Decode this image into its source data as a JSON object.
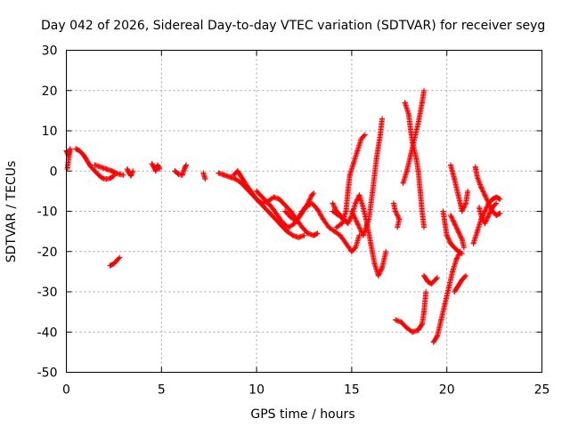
{
  "chart_data": {
    "type": "scatter",
    "title": "Day 042 of 2026, Sidereal Day-to-day VTEC variation (SDTVAR) for receiver seyg",
    "xlabel": "GPS time / hours",
    "ylabel": "SDTVAR / TECUs",
    "xlim": [
      0,
      25
    ],
    "ylim": [
      -50,
      30
    ],
    "xticks": [
      "0",
      "5",
      "10",
      "15",
      "20",
      "25"
    ],
    "yticks": [
      "30",
      "20",
      "10",
      "0",
      "-10",
      "-20",
      "-30",
      "-40",
      "-50"
    ],
    "grid": true,
    "marker": "+",
    "color": "#ff0000",
    "series": [
      {
        "name": "s1",
        "points": [
          [
            0.0,
            5.0
          ],
          [
            0.1,
            4.0
          ],
          [
            0.2,
            5.5
          ],
          [
            0.05,
            0.5
          ]
        ]
      },
      {
        "name": "s2",
        "points": [
          [
            0.5,
            5.5
          ],
          [
            0.7,
            5.0
          ],
          [
            0.9,
            4.0
          ],
          [
            1.1,
            2.5
          ],
          [
            1.3,
            1.0
          ],
          [
            1.5,
            0.0
          ],
          [
            1.7,
            -1.0
          ],
          [
            1.9,
            -1.8
          ],
          [
            2.1,
            -2.0
          ],
          [
            2.3,
            -1.8
          ],
          [
            2.5,
            -1.2
          ]
        ]
      },
      {
        "name": "s3",
        "points": [
          [
            1.5,
            1.5
          ],
          [
            1.8,
            1.0
          ],
          [
            2.1,
            0.5
          ],
          [
            2.4,
            0.0
          ],
          [
            2.6,
            -0.5
          ],
          [
            2.8,
            -0.8
          ],
          [
            3.0,
            -1.0
          ]
        ]
      },
      {
        "name": "s4",
        "points": [
          [
            2.3,
            -23.5
          ],
          [
            2.5,
            -23.0
          ],
          [
            2.7,
            -22.0
          ],
          [
            2.8,
            -21.5
          ]
        ]
      },
      {
        "name": "s5",
        "points": [
          [
            3.2,
            0.5
          ],
          [
            3.3,
            -0.5
          ],
          [
            3.4,
            -1.2
          ],
          [
            3.5,
            0.0
          ]
        ]
      },
      {
        "name": "s6",
        "points": [
          [
            4.5,
            1.8
          ],
          [
            4.6,
            1.0
          ],
          [
            4.7,
            0.0
          ],
          [
            4.8,
            1.5
          ],
          [
            4.9,
            0.5
          ]
        ]
      },
      {
        "name": "s7",
        "points": [
          [
            5.7,
            0.0
          ],
          [
            5.9,
            -0.8
          ],
          [
            6.1,
            -1.0
          ],
          [
            6.2,
            0.5
          ],
          [
            6.3,
            1.5
          ]
        ]
      },
      {
        "name": "s8",
        "points": [
          [
            7.2,
            -0.5
          ],
          [
            7.3,
            -2.0
          ]
        ]
      },
      {
        "name": "s9",
        "points": [
          [
            8.0,
            -0.5
          ],
          [
            8.3,
            -1.0
          ],
          [
            8.6,
            -1.5
          ],
          [
            8.9,
            -2.0
          ],
          [
            9.2,
            -3.0
          ],
          [
            9.5,
            -4.5
          ],
          [
            9.8,
            -6.0
          ],
          [
            10.1,
            -7.5
          ],
          [
            10.4,
            -9.0
          ],
          [
            10.7,
            -10.5
          ],
          [
            11.0,
            -12.0
          ],
          [
            11.3,
            -13.5
          ],
          [
            11.6,
            -15.0
          ],
          [
            11.9,
            -16.0
          ],
          [
            12.2,
            -16.5
          ],
          [
            12.5,
            -16.0
          ]
        ]
      },
      {
        "name": "s10",
        "points": [
          [
            8.8,
            -1.0
          ],
          [
            9.0,
            0.0
          ],
          [
            9.2,
            -1.5
          ],
          [
            9.4,
            -3.0
          ],
          [
            9.7,
            -5.0
          ],
          [
            10.0,
            -7.0
          ],
          [
            10.3,
            -8.0
          ],
          [
            10.6,
            -7.5
          ],
          [
            10.9,
            -6.5
          ],
          [
            11.2,
            -7.0
          ],
          [
            11.5,
            -8.5
          ],
          [
            11.8,
            -10.0
          ],
          [
            12.1,
            -12.0
          ],
          [
            12.4,
            -14.0
          ],
          [
            12.7,
            -15.5
          ],
          [
            13.0,
            -16.0
          ],
          [
            13.2,
            -15.5
          ]
        ]
      },
      {
        "name": "s11",
        "points": [
          [
            10.0,
            -5.0
          ],
          [
            10.4,
            -7.0
          ],
          [
            10.8,
            -9.0
          ],
          [
            11.1,
            -11.0
          ],
          [
            11.4,
            -13.0
          ],
          [
            11.7,
            -14.0
          ],
          [
            12.0,
            -13.0
          ],
          [
            12.3,
            -11.0
          ],
          [
            12.6,
            -9.0
          ],
          [
            12.9,
            -8.0
          ],
          [
            13.2,
            -9.5
          ],
          [
            13.5,
            -12.0
          ],
          [
            13.8,
            -14.0
          ],
          [
            14.1,
            -15.0
          ],
          [
            14.4,
            -16.0
          ],
          [
            14.7,
            -18.0
          ],
          [
            15.0,
            -20.0
          ],
          [
            15.2,
            -19.0
          ],
          [
            15.4,
            -16.0
          ]
        ]
      },
      {
        "name": "s12",
        "points": [
          [
            11.5,
            -10.0
          ],
          [
            11.8,
            -11.5
          ],
          [
            12.1,
            -12.5
          ],
          [
            12.4,
            -10.0
          ],
          [
            12.7,
            -8.0
          ],
          [
            12.9,
            -6.0
          ],
          [
            13.0,
            -5.5
          ]
        ]
      },
      {
        "name": "s13",
        "points": [
          [
            14.0,
            -8.0
          ],
          [
            14.2,
            -10.0
          ],
          [
            14.4,
            -11.0
          ],
          [
            14.6,
            -12.0
          ],
          [
            14.8,
            -13.0
          ],
          [
            15.0,
            -11.0
          ],
          [
            15.2,
            -8.0
          ],
          [
            15.4,
            -6.0
          ],
          [
            15.6,
            -9.0
          ],
          [
            15.8,
            -13.0
          ],
          [
            16.0,
            -18.0
          ],
          [
            16.2,
            -23.0
          ],
          [
            16.4,
            -26.0
          ],
          [
            16.6,
            -24.0
          ],
          [
            16.8,
            -20.0
          ]
        ]
      },
      {
        "name": "s14",
        "points": [
          [
            14.2,
            -14.0
          ],
          [
            14.5,
            -13.0
          ],
          [
            14.7,
            -10.0
          ],
          [
            14.8,
            -5.0
          ],
          [
            14.9,
            -1.0
          ],
          [
            15.1,
            2.0
          ],
          [
            15.3,
            5.0
          ],
          [
            15.5,
            8.0
          ],
          [
            15.7,
            9.0
          ]
        ]
      },
      {
        "name": "s15",
        "points": [
          [
            15.0,
            -10.0
          ],
          [
            15.3,
            -13.0
          ],
          [
            15.6,
            -16.0
          ],
          [
            15.9,
            -12.0
          ],
          [
            16.1,
            -5.0
          ],
          [
            16.3,
            3.0
          ],
          [
            16.5,
            9.0
          ],
          [
            16.6,
            13.0
          ]
        ]
      },
      {
        "name": "s16",
        "points": [
          [
            14.0,
            -10.0
          ],
          [
            14.3,
            -11.0
          ],
          [
            14.6,
            -12.0
          ]
        ]
      },
      {
        "name": "s17",
        "points": [
          [
            17.2,
            -8.0
          ],
          [
            17.3,
            -10.0
          ],
          [
            17.5,
            -12.0
          ],
          [
            17.4,
            -14.0
          ]
        ]
      },
      {
        "name": "s18",
        "points": [
          [
            17.3,
            -37.0
          ],
          [
            17.6,
            -37.5
          ],
          [
            17.9,
            -39.0
          ],
          [
            18.2,
            -40.0
          ],
          [
            18.5,
            -39.5
          ],
          [
            18.7,
            -38.0
          ],
          [
            18.8,
            -35.0
          ],
          [
            18.9,
            -30.0
          ]
        ]
      },
      {
        "name": "s19",
        "points": [
          [
            17.8,
            17.0
          ],
          [
            18.0,
            14.0
          ],
          [
            18.1,
            10.0
          ],
          [
            18.2,
            7.0
          ],
          [
            18.4,
            3.0
          ],
          [
            18.5,
            0.0
          ],
          [
            18.6,
            -5.0
          ],
          [
            18.7,
            -10.0
          ],
          [
            18.8,
            -14.0
          ]
        ]
      },
      {
        "name": "s20",
        "points": [
          [
            17.7,
            -3.0
          ],
          [
            17.9,
            0.0
          ],
          [
            18.1,
            4.0
          ],
          [
            18.3,
            8.0
          ],
          [
            18.5,
            12.0
          ],
          [
            18.7,
            17.0
          ],
          [
            18.8,
            20.0
          ]
        ]
      },
      {
        "name": "s21",
        "points": [
          [
            18.8,
            -26.0
          ],
          [
            19.0,
            -27.5
          ],
          [
            19.2,
            -28.0
          ],
          [
            19.4,
            -27.0
          ],
          [
            19.5,
            -26.5
          ]
        ]
      },
      {
        "name": "s22",
        "points": [
          [
            19.3,
            -42.5
          ],
          [
            19.5,
            -41.0
          ],
          [
            19.7,
            -37.0
          ],
          [
            19.9,
            -33.0
          ],
          [
            20.1,
            -29.0
          ],
          [
            20.3,
            -25.0
          ],
          [
            20.5,
            -22.0
          ],
          [
            20.7,
            -20.0
          ]
        ]
      },
      {
        "name": "s23",
        "points": [
          [
            19.8,
            -10.0
          ],
          [
            19.9,
            -13.0
          ],
          [
            20.0,
            -16.0
          ],
          [
            20.2,
            -18.0
          ],
          [
            20.4,
            -19.0
          ],
          [
            20.6,
            -20.0
          ],
          [
            20.8,
            -20.5
          ]
        ]
      },
      {
        "name": "s24",
        "points": [
          [
            20.2,
            1.5
          ],
          [
            20.4,
            -2.0
          ],
          [
            20.6,
            -6.0
          ],
          [
            20.8,
            -10.0
          ],
          [
            21.0,
            -8.0
          ],
          [
            21.1,
            -5.0
          ]
        ]
      },
      {
        "name": "s25",
        "points": [
          [
            20.2,
            -11.0
          ],
          [
            20.4,
            -13.0
          ],
          [
            20.6,
            -15.0
          ],
          [
            20.8,
            -17.0
          ],
          [
            20.9,
            -19.0
          ]
        ]
      },
      {
        "name": "s26",
        "points": [
          [
            20.4,
            -30.0
          ],
          [
            20.6,
            -28.5
          ],
          [
            20.8,
            -27.0
          ],
          [
            21.0,
            -26.0
          ]
        ]
      },
      {
        "name": "s27",
        "points": [
          [
            21.4,
            -18.0
          ],
          [
            21.6,
            -15.0
          ],
          [
            21.8,
            -12.0
          ],
          [
            22.0,
            -10.0
          ],
          [
            22.2,
            -8.0
          ],
          [
            22.4,
            -7.0
          ],
          [
            22.6,
            -6.5
          ],
          [
            22.8,
            -7.0
          ]
        ]
      },
      {
        "name": "s28",
        "points": [
          [
            21.5,
            1.0
          ],
          [
            21.6,
            -1.5
          ],
          [
            21.8,
            -4.0
          ],
          [
            22.0,
            -6.0
          ],
          [
            22.2,
            -8.0
          ],
          [
            22.4,
            -10.0
          ],
          [
            22.6,
            -11.0
          ],
          [
            22.8,
            -10.5
          ]
        ]
      },
      {
        "name": "s29",
        "points": [
          [
            21.7,
            -9.0
          ],
          [
            21.8,
            -11.0
          ],
          [
            22.0,
            -13.0
          ],
          [
            22.2,
            -11.0
          ],
          [
            22.4,
            -9.0
          ],
          [
            22.6,
            -8.0
          ]
        ]
      }
    ]
  }
}
